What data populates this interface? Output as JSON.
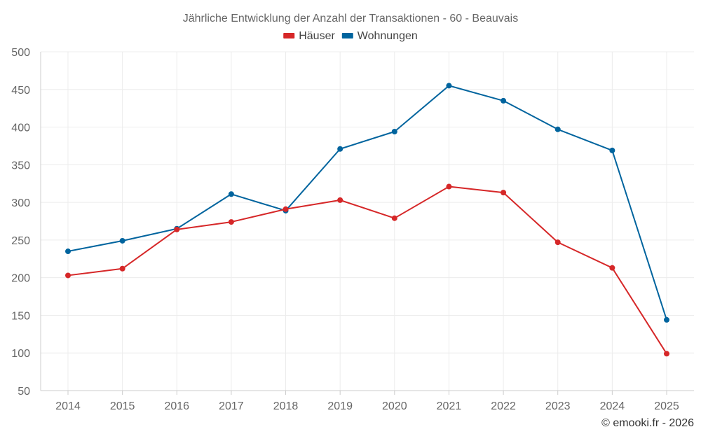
{
  "chart_data": {
    "type": "line",
    "title": "Jährliche Entwicklung der Anzahl der Transaktionen - 60 - Beauvais",
    "categories": [
      "2014",
      "2015",
      "2016",
      "2017",
      "2018",
      "2019",
      "2020",
      "2021",
      "2022",
      "2023",
      "2024",
      "2025"
    ],
    "series": [
      {
        "name": "Häuser",
        "color": "#d62728",
        "values": [
          203,
          212,
          264,
          274,
          291,
          303,
          279,
          321,
          313,
          247,
          213,
          99
        ]
      },
      {
        "name": "Wohnungen",
        "color": "#00649e",
        "values": [
          235,
          249,
          265,
          311,
          289,
          371,
          394,
          455,
          435,
          397,
          369,
          144
        ]
      }
    ],
    "xlabel": "",
    "ylabel": "",
    "ylim": [
      50,
      500
    ],
    "yticks": [
      "50",
      "100",
      "150",
      "200",
      "250",
      "300",
      "350",
      "400",
      "450",
      "500"
    ],
    "grid": true,
    "legend_position": "top-center"
  },
  "credit": "© emooki.fr - 2026"
}
